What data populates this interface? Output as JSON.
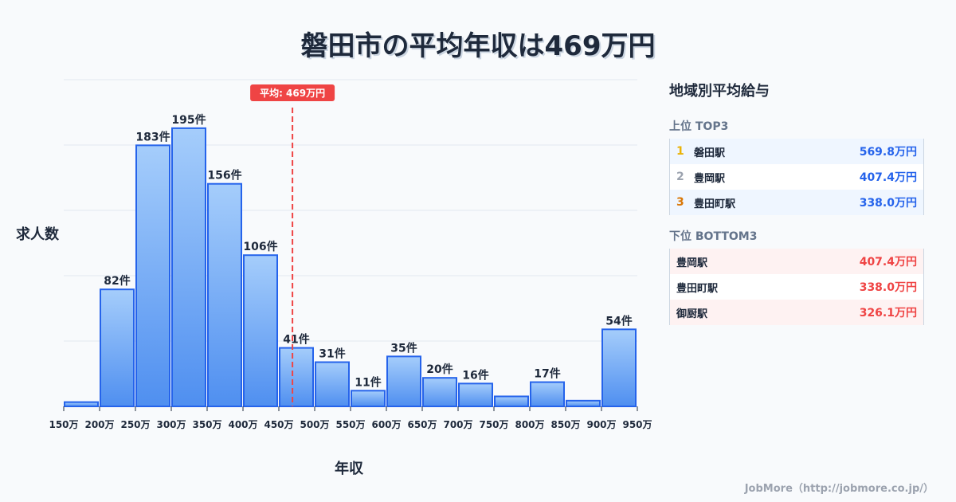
{
  "title": "磐田市の平均年収は469万円",
  "chart_data": {
    "type": "bar",
    "title": "磐田市の平均年収は469万円",
    "xlabel": "年収",
    "ylabel": "求人数",
    "categories": [
      "150-200万",
      "200-250万",
      "250-300万",
      "300-350万",
      "350-400万",
      "400-450万",
      "450-500万",
      "500-550万",
      "550-600万",
      "600-650万",
      "650-700万",
      "700-750万",
      "750-800万",
      "800-850万",
      "850-900万",
      "900-950万"
    ],
    "x_ticks": [
      "150万",
      "200万",
      "250万",
      "300万",
      "350万",
      "400万",
      "450万",
      "500万",
      "550万",
      "600万",
      "650万",
      "700万",
      "750万",
      "800万",
      "850万",
      "900万",
      "950万"
    ],
    "values": [
      3,
      82,
      183,
      195,
      156,
      106,
      41,
      31,
      11,
      35,
      20,
      16,
      7,
      17,
      4,
      54
    ],
    "labels": [
      "",
      "82件",
      "183件",
      "195件",
      "156件",
      "106件",
      "41件",
      "31件",
      "11件",
      "35件",
      "20件",
      "16件",
      "",
      "17件",
      "",
      "54件"
    ],
    "mean": 469,
    "mean_label": "平均: 469万円",
    "ylim": [
      0,
      229
    ],
    "grid": true,
    "colors": {
      "bar_top": "#a5cdfb",
      "bar_bottom": "#4f8ff0",
      "bar_border": "#2563eb",
      "mean_line": "#ef4444",
      "grid": "#e2e8f0"
    }
  },
  "axes": {
    "ylabel": "求人数",
    "xlabel": "年収"
  },
  "panel": {
    "title": "地域別平均給与",
    "top": {
      "heading": "上位 TOP3",
      "items": [
        {
          "rank": "1",
          "name": "磐田駅",
          "value": "569.8万円",
          "rank_color": "#eab308"
        },
        {
          "rank": "2",
          "name": "豊岡駅",
          "value": "407.4万円",
          "rank_color": "#9ca3af"
        },
        {
          "rank": "3",
          "name": "豊田町駅",
          "value": "338.0万円",
          "rank_color": "#d97706"
        }
      ]
    },
    "bottom": {
      "heading": "下位 BOTTOM3",
      "items": [
        {
          "name": "豊岡駅",
          "value": "407.4万円"
        },
        {
          "name": "豊田町駅",
          "value": "338.0万円"
        },
        {
          "name": "御厨駅",
          "value": "326.1万円"
        }
      ]
    }
  },
  "footer": "JobMore（http://jobmore.co.jp/）"
}
